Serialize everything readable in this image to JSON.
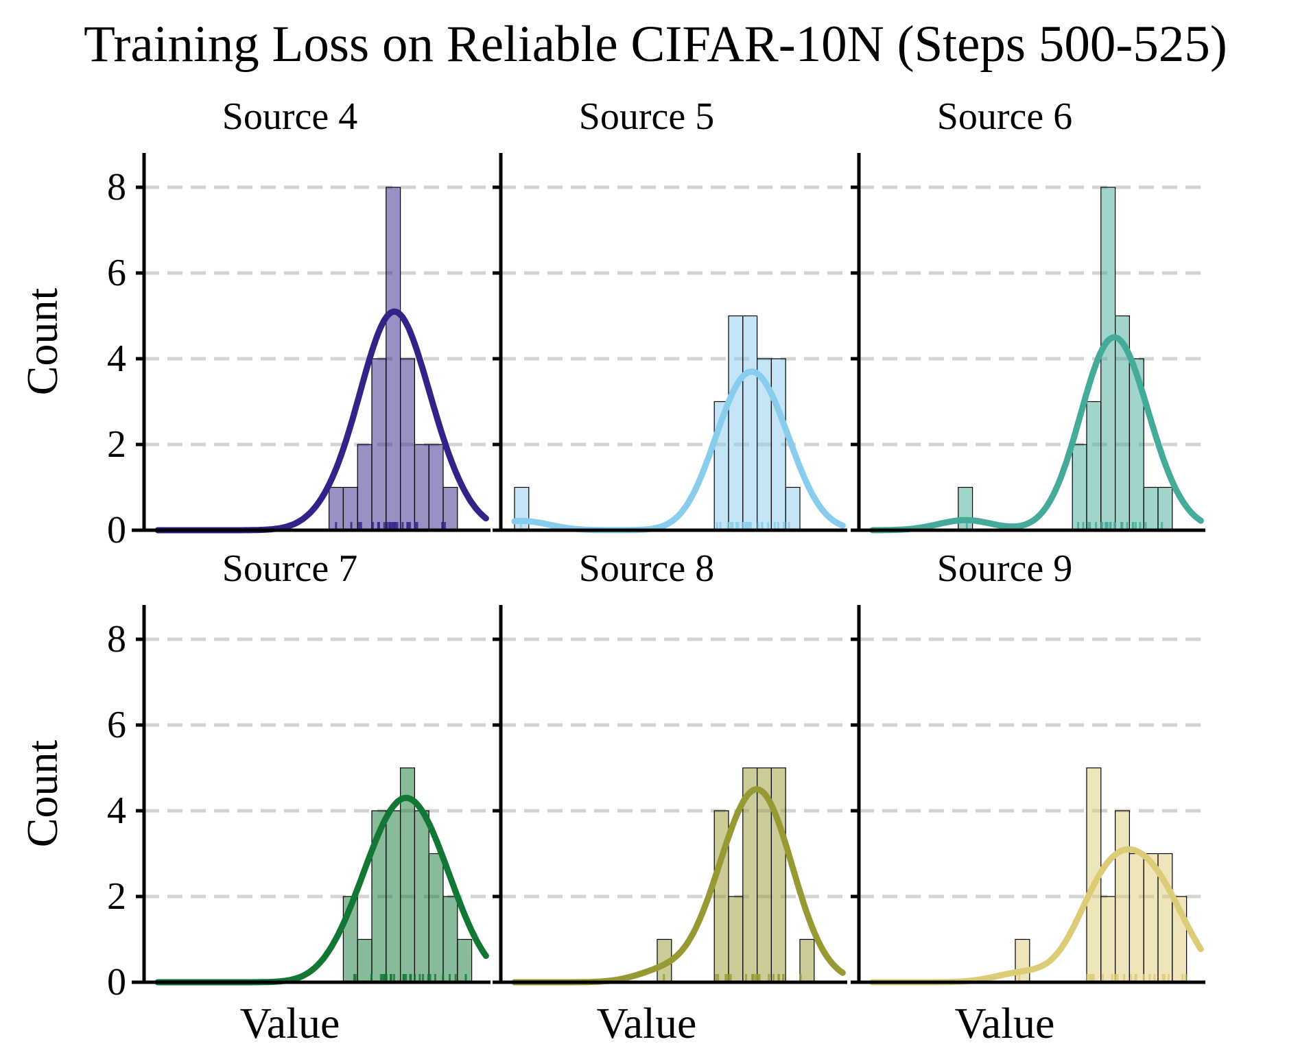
{
  "title": "Training Loss on Reliable CIFAR-10N (Steps 500-525)",
  "chart_data": {
    "type": "histogram",
    "layout": "2x3 grid",
    "shared_y_axis": true,
    "ylabel": "Count",
    "xlabel": "Value",
    "ylim": [
      0,
      8.8
    ],
    "yticks": [
      0,
      2,
      4,
      6,
      8
    ],
    "grid": "horizontal dashed",
    "bins": 23,
    "x_range": [
      0,
      23
    ],
    "panels": [
      {
        "title": "Source 4",
        "color": "#332288",
        "counts": [
          0,
          0,
          0,
          0,
          0,
          0,
          0,
          0,
          0,
          0,
          0,
          0,
          1,
          1,
          2,
          4,
          8,
          4,
          2,
          2,
          1,
          0,
          0
        ],
        "kde_peak": 5.1,
        "rug": true
      },
      {
        "title": "Source 5",
        "color": "#88CCEE",
        "counts": [
          1,
          0,
          0,
          0,
          0,
          0,
          0,
          0,
          0,
          0,
          0,
          0,
          0,
          0,
          3,
          5,
          5,
          4,
          4,
          1,
          0,
          0,
          0
        ],
        "kde_peak": 3.7,
        "rug": true
      },
      {
        "title": "Source 6",
        "color": "#44AA99",
        "counts": [
          0,
          0,
          0,
          0,
          0,
          0,
          1,
          0,
          0,
          0,
          0,
          0,
          0,
          0,
          2,
          3,
          8,
          5,
          4,
          1,
          1,
          0,
          0
        ],
        "kde_peak": 4.5,
        "rug": true
      },
      {
        "title": "Source 7",
        "color": "#117733",
        "counts": [
          0,
          0,
          0,
          0,
          0,
          0,
          0,
          0,
          0,
          0,
          0,
          0,
          0,
          2,
          1,
          4,
          4,
          5,
          4,
          3,
          2,
          1,
          0
        ],
        "kde_peak": 4.3,
        "rug": true
      },
      {
        "title": "Source 8",
        "color": "#999933",
        "counts": [
          0,
          0,
          0,
          0,
          0,
          0,
          0,
          0,
          0,
          0,
          1,
          0,
          0,
          0,
          4,
          2,
          5,
          5,
          5,
          0,
          1,
          0,
          0
        ],
        "kde_peak": 4.5,
        "rug": true
      },
      {
        "title": "Source 9",
        "color": "#DDCC77",
        "counts": [
          0,
          0,
          0,
          0,
          0,
          0,
          0,
          0,
          0,
          0,
          1,
          0,
          0,
          0,
          0,
          5,
          2,
          4,
          3,
          3,
          3,
          2,
          0
        ],
        "kde_peak": 3.1,
        "rug": true
      }
    ]
  }
}
